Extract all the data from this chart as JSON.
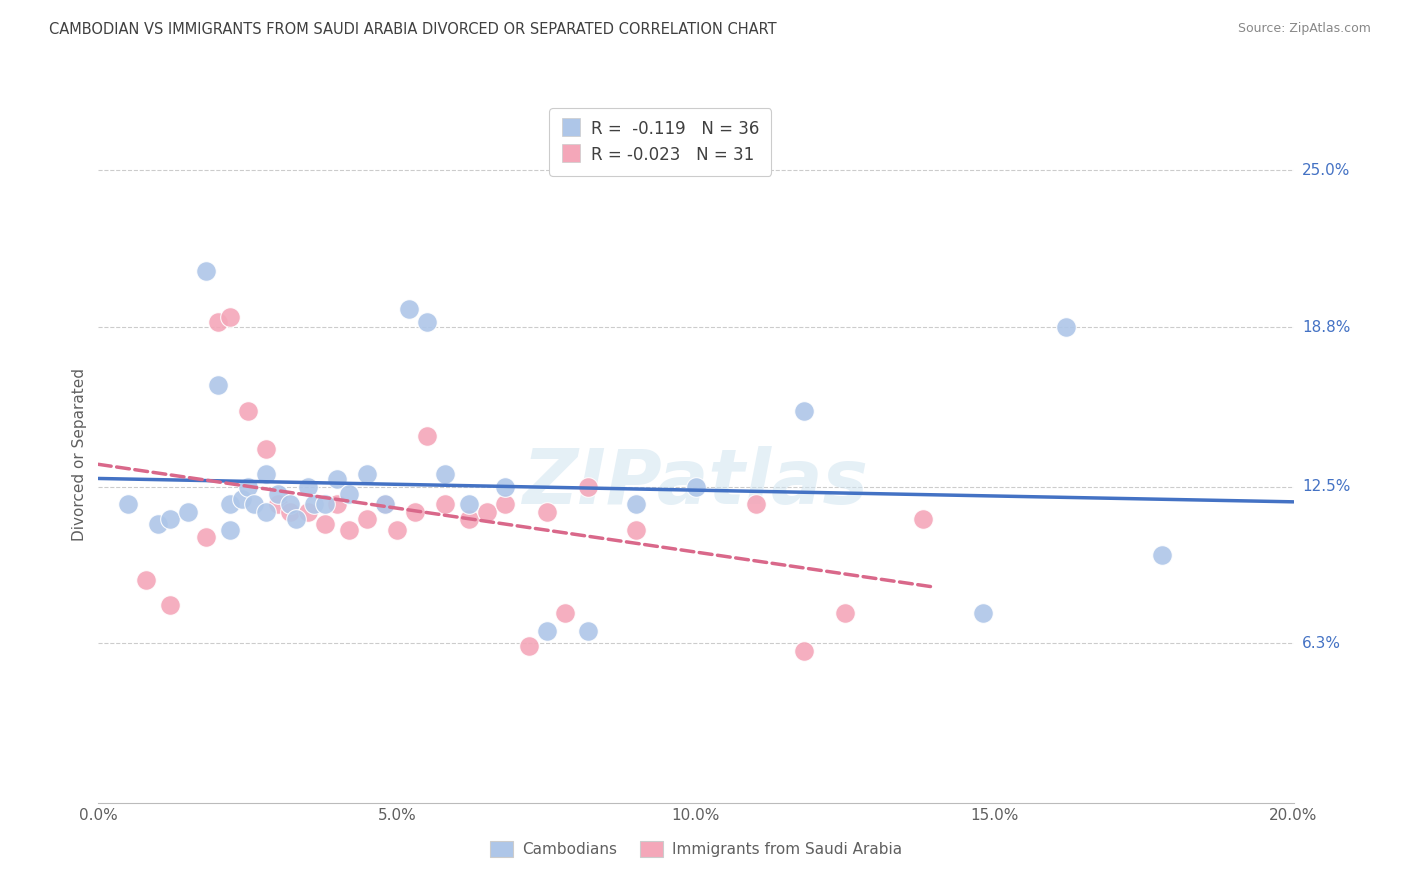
{
  "title": "CAMBODIAN VS IMMIGRANTS FROM SAUDI ARABIA DIVORCED OR SEPARATED CORRELATION CHART",
  "source": "Source: ZipAtlas.com",
  "ylabel": "Divorced or Separated",
  "xlim": [
    0.0,
    0.2
  ],
  "ylim": [
    0.0,
    0.275
  ],
  "ytick_labels": [
    "6.3%",
    "12.5%",
    "18.8%",
    "25.0%"
  ],
  "ytick_vals": [
    0.063,
    0.125,
    0.188,
    0.25
  ],
  "xtick_labels": [
    "0.0%",
    "5.0%",
    "10.0%",
    "15.0%",
    "20.0%"
  ],
  "xtick_vals": [
    0.0,
    0.05,
    0.1,
    0.15,
    0.2
  ],
  "legend_label1": "Cambodians",
  "legend_label2": "Immigrants from Saudi Arabia",
  "R1": -0.119,
  "N1": 36,
  "R2": -0.023,
  "N2": 31,
  "color1": "#aec6e8",
  "color2": "#f4a7b9",
  "line_color1": "#4472c4",
  "line_color2": "#d9688a",
  "watermark": "ZIPatlas",
  "background_color": "#ffffff",
  "grid_color": "#cccccc",
  "title_color": "#404040",
  "source_color": "#888888",
  "axis_label_color": "#606060",
  "scatter1_x": [
    0.005,
    0.01,
    0.012,
    0.015,
    0.018,
    0.02,
    0.022,
    0.022,
    0.024,
    0.025,
    0.026,
    0.028,
    0.028,
    0.03,
    0.032,
    0.033,
    0.035,
    0.036,
    0.038,
    0.04,
    0.042,
    0.045,
    0.048,
    0.052,
    0.055,
    0.058,
    0.062,
    0.068,
    0.075,
    0.082,
    0.09,
    0.1,
    0.118,
    0.148,
    0.162,
    0.178
  ],
  "scatter1_y": [
    0.118,
    0.11,
    0.112,
    0.115,
    0.21,
    0.165,
    0.118,
    0.108,
    0.12,
    0.125,
    0.118,
    0.13,
    0.115,
    0.122,
    0.118,
    0.112,
    0.125,
    0.118,
    0.118,
    0.128,
    0.122,
    0.13,
    0.118,
    0.195,
    0.19,
    0.13,
    0.118,
    0.125,
    0.068,
    0.068,
    0.118,
    0.125,
    0.155,
    0.075,
    0.188,
    0.098
  ],
  "scatter2_x": [
    0.008,
    0.012,
    0.018,
    0.02,
    0.022,
    0.025,
    0.028,
    0.03,
    0.032,
    0.035,
    0.038,
    0.04,
    0.042,
    0.045,
    0.048,
    0.05,
    0.053,
    0.055,
    0.058,
    0.062,
    0.065,
    0.068,
    0.072,
    0.075,
    0.078,
    0.082,
    0.09,
    0.11,
    0.118,
    0.125,
    0.138
  ],
  "scatter2_y": [
    0.088,
    0.078,
    0.105,
    0.19,
    0.192,
    0.155,
    0.14,
    0.118,
    0.115,
    0.115,
    0.11,
    0.118,
    0.108,
    0.112,
    0.118,
    0.108,
    0.115,
    0.145,
    0.118,
    0.112,
    0.115,
    0.118,
    0.062,
    0.115,
    0.075,
    0.125,
    0.108,
    0.118,
    0.06,
    0.075,
    0.112
  ]
}
